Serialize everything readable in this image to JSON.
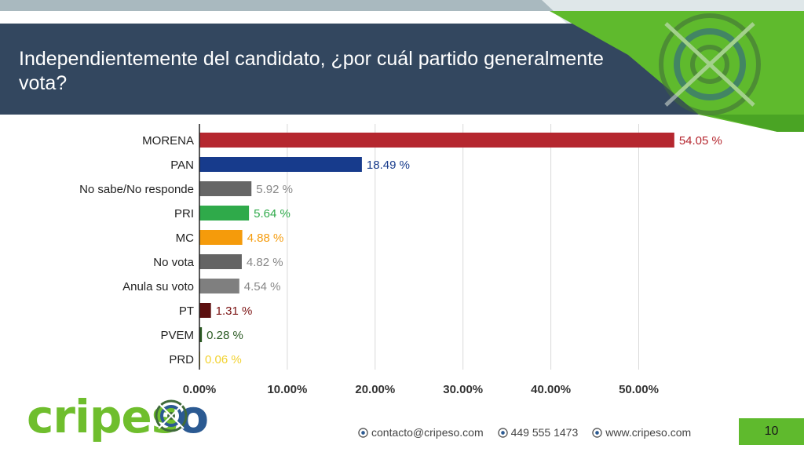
{
  "slide": {
    "title": "Independientemente del candidato, ¿por cuál partido generalmente vota?",
    "page_number": "10",
    "brand_colors": {
      "title_bar": "#33475f",
      "accent_green": "#5fba2d",
      "logo_blue": "#2b5a92"
    }
  },
  "logo": {
    "part1": "cripes",
    "part2": "o",
    "icon": "target-icon"
  },
  "footer": {
    "contacts": [
      {
        "icon": "globe-icon",
        "text": "contacto@cripeso.com"
      },
      {
        "icon": "globe-icon",
        "text": "449 555 1473"
      },
      {
        "icon": "globe-icon",
        "text": "www.cripeso.com"
      }
    ]
  },
  "chart_data": {
    "type": "bar",
    "orientation": "horizontal",
    "categories": [
      "MORENA",
      "PAN",
      "No sabe/No responde",
      "PRI",
      "MC",
      "No vota",
      "Anula su voto",
      "PT",
      "PVEM",
      "PRD"
    ],
    "values": [
      54.05,
      18.49,
      5.92,
      5.64,
      4.88,
      4.82,
      4.54,
      1.31,
      0.28,
      0.06
    ],
    "value_labels": [
      "54.05 %",
      "18.49 %",
      "5.92 %",
      "5.64 %",
      "4.88 %",
      "4.82 %",
      "4.54 %",
      "1.31 %",
      "0.28 %",
      "0.06 %"
    ],
    "colors": [
      "#b5272f",
      "#173b8c",
      "#666666",
      "#2faa4a",
      "#f59b0b",
      "#646464",
      "#7f7f7f",
      "#5c0f0f",
      "#2a5a22",
      "#f2d230"
    ],
    "label_colors": [
      "#b5272f",
      "#173b8c",
      "#888888",
      "#2faa4a",
      "#f59b0b",
      "#888888",
      "#888888",
      "#7a1010",
      "#2a5a22",
      "#f2d230"
    ],
    "xlim": [
      0,
      55
    ],
    "xticks": [
      0,
      10,
      20,
      30,
      40,
      50
    ],
    "xtick_labels": [
      "0.00%",
      "10.00%",
      "20.00%",
      "30.00%",
      "40.00%",
      "50.00%"
    ],
    "grid": true,
    "title": "",
    "xlabel": "",
    "ylabel": ""
  }
}
